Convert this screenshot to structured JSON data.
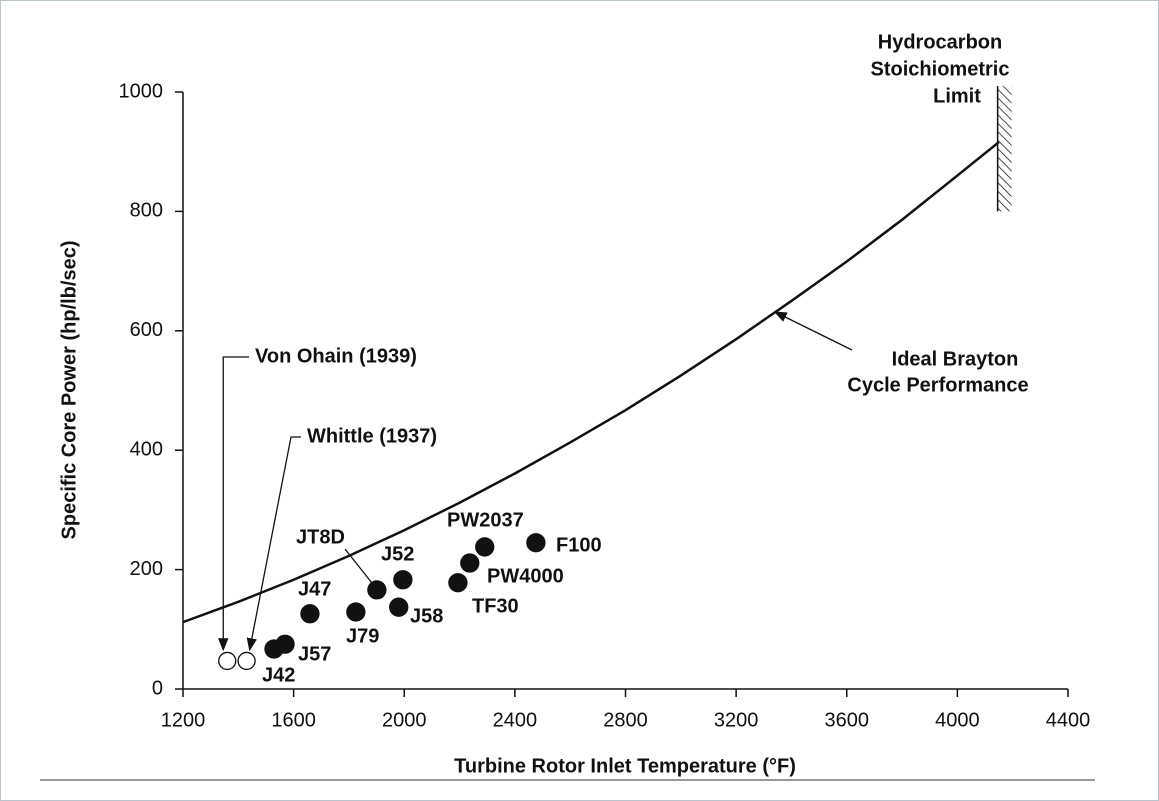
{
  "chart_data": {
    "type": "scatter",
    "xlabel": "Turbine Rotor Inlet Temperature (°F)",
    "ylabel": "Specific Core Power (hp/lb/sec)",
    "xlim": [
      1200,
      4400
    ],
    "xticks": [
      1200,
      1600,
      2000,
      2400,
      2800,
      3200,
      3600,
      4000,
      4400
    ],
    "ylim": [
      0,
      1000
    ],
    "yticks": [
      0,
      200,
      400,
      600,
      800,
      1000
    ],
    "curve": {
      "label": [
        "Ideal Brayton",
        "Cycle Performance"
      ],
      "x": [
        1200,
        1400,
        1600,
        1800,
        2000,
        2200,
        2400,
        2600,
        2800,
        3000,
        3200,
        3400,
        3600,
        3800,
        4000,
        4150
      ],
      "values": [
        112,
        146,
        183,
        223,
        266,
        312,
        361,
        413,
        467,
        525,
        586,
        650,
        716,
        786,
        860,
        916
      ]
    },
    "limit": {
      "label": [
        "Hydrocarbon",
        "Stoichiometric",
        "Limit"
      ],
      "x": 4160,
      "ylim": [
        800,
        1010
      ]
    },
    "points": [
      {
        "label": "Von Ohain (1939)",
        "x": 1360,
        "y": 47,
        "marker": "open"
      },
      {
        "label": "Whittle (1937)",
        "x": 1430,
        "y": 47,
        "marker": "open"
      },
      {
        "label": "J42",
        "x": 1529,
        "y": 67,
        "marker": "filled"
      },
      {
        "label": "J57",
        "x": 1569,
        "y": 75,
        "marker": "filled"
      },
      {
        "label": "J47",
        "x": 1659,
        "y": 126,
        "marker": "filled"
      },
      {
        "label": "J79",
        "x": 1825,
        "y": 129,
        "marker": "filled"
      },
      {
        "label": "JT8D",
        "x": 1901,
        "y": 166,
        "marker": "filled"
      },
      {
        "label": "J58",
        "x": 1980,
        "y": 137,
        "marker": "filled"
      },
      {
        "label": "J52",
        "x": 1995,
        "y": 183,
        "marker": "filled"
      },
      {
        "label": "TF30",
        "x": 2194,
        "y": 178,
        "marker": "filled"
      },
      {
        "label": "PW4000",
        "x": 2237,
        "y": 211,
        "marker": "filled"
      },
      {
        "label": "PW2037",
        "x": 2291,
        "y": 238,
        "marker": "filled"
      },
      {
        "label": "F100",
        "x": 2476,
        "y": 245,
        "marker": "filled"
      }
    ]
  }
}
